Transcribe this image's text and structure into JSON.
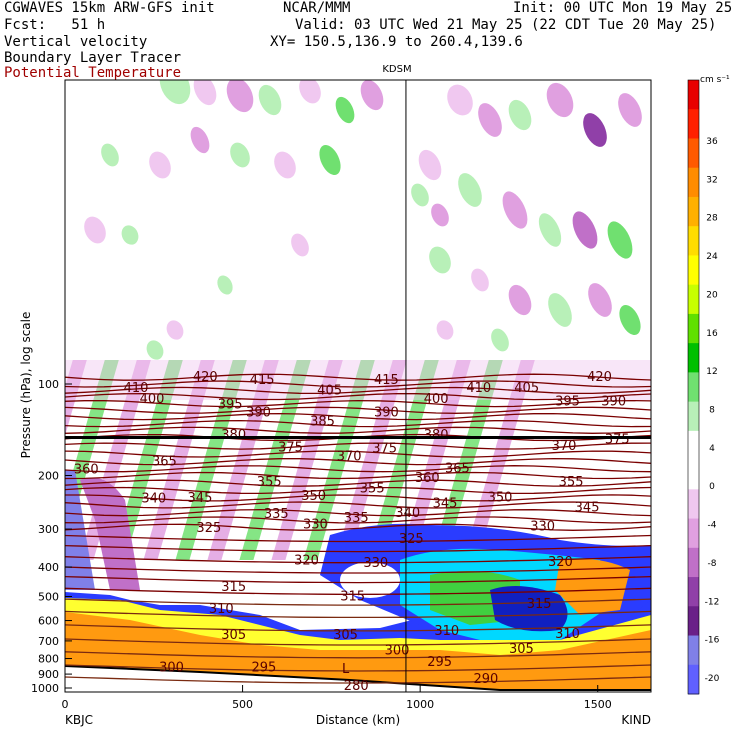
{
  "header": {
    "model": "CGWAVES 15km ARW-GFS init",
    "org": "NCAR/MMM",
    "init": "Init: 00 UTC Mon 19 May 25",
    "fcst": "Fcst:   51 h",
    "valid": "Valid: 03 UTC Wed 21 May 25 (22 CDT Tue 20 May 25)",
    "field1": "Vertical velocity",
    "xy": "XY= 150.5,136.9 to 260.4,139.6",
    "field2": "Boundary Layer Tracer",
    "field3": "Potential Temperature",
    "field3_color": "#a00000"
  },
  "chart_data": {
    "type": "heatmap",
    "title": "KDSM",
    "xlabel": "Distance (km)",
    "ylabel": "Pressure (hPa), log scale",
    "xlim": [
      0,
      1650
    ],
    "x_ticks": [
      0,
      500,
      1000,
      1500
    ],
    "y_ticks": [
      100,
      200,
      300,
      400,
      500,
      600,
      700,
      800,
      900,
      1000
    ],
    "y_scale": "log",
    "left_station": "KBJC",
    "right_station": "KIND",
    "mid_station": "KDSM",
    "mid_station_km": 960,
    "colorbar": {
      "unit": "cm s⁻¹",
      "labels": [
        36,
        32,
        28,
        24,
        20,
        16,
        12,
        8,
        4,
        0,
        -4,
        -8,
        -12,
        -16,
        -20
      ],
      "colors": [
        "#e80000",
        "#ff2000",
        "#ff5a00",
        "#ff8c00",
        "#ffb000",
        "#ffdc00",
        "#ffff00",
        "#c8ff00",
        "#60e000",
        "#00c000",
        "#70e070",
        "#b8f0b8",
        "#ffffff",
        "#ffffff",
        "#f0c8f0",
        "#e0a0e0",
        "#c070c8",
        "#9040a8",
        "#6a2088",
        "#8080e8",
        "#6060ff"
      ]
    },
    "tropopause_hPa": 150,
    "theta_labels": [
      {
        "v": "420",
        "km": 395,
        "p": 95
      },
      {
        "v": "415",
        "km": 555,
        "p": 97
      },
      {
        "v": "415",
        "km": 905,
        "p": 97
      },
      {
        "v": "420",
        "km": 1505,
        "p": 95
      },
      {
        "v": "410",
        "km": 200,
        "p": 103
      },
      {
        "v": "405",
        "km": 745,
        "p": 105
      },
      {
        "v": "410",
        "km": 1165,
        "p": 103
      },
      {
        "v": "405",
        "km": 1300,
        "p": 103
      },
      {
        "v": "400",
        "km": 245,
        "p": 112
      },
      {
        "v": "395",
        "km": 465,
        "p": 117
      },
      {
        "v": "390",
        "km": 545,
        "p": 124
      },
      {
        "v": "390",
        "km": 905,
        "p": 124
      },
      {
        "v": "400",
        "km": 1045,
        "p": 112
      },
      {
        "v": "395",
        "km": 1415,
        "p": 114
      },
      {
        "v": "390",
        "km": 1545,
        "p": 114
      },
      {
        "v": "385",
        "km": 725,
        "p": 133
      },
      {
        "v": "380",
        "km": 475,
        "p": 147
      },
      {
        "v": "375",
        "km": 635,
        "p": 162
      },
      {
        "v": "375",
        "km": 900,
        "p": 163
      },
      {
        "v": "380",
        "km": 1045,
        "p": 147
      },
      {
        "v": "370",
        "km": 1405,
        "p": 160
      },
      {
        "v": "375",
        "km": 1555,
        "p": 152
      },
      {
        "v": "370",
        "km": 800,
        "p": 173
      },
      {
        "v": "365",
        "km": 1105,
        "p": 190
      },
      {
        "v": "360",
        "km": 60,
        "p": 191
      },
      {
        "v": "365",
        "km": 280,
        "p": 180
      },
      {
        "v": "360",
        "km": 1020,
        "p": 204
      },
      {
        "v": "355",
        "km": 575,
        "p": 210
      },
      {
        "v": "355",
        "km": 865,
        "p": 221
      },
      {
        "v": "355",
        "km": 1425,
        "p": 210
      },
      {
        "v": "350",
        "km": 700,
        "p": 234
      },
      {
        "v": "350",
        "km": 1225,
        "p": 236
      },
      {
        "v": "340",
        "km": 250,
        "p": 238
      },
      {
        "v": "345",
        "km": 380,
        "p": 237
      },
      {
        "v": "345",
        "km": 1070,
        "p": 247
      },
      {
        "v": "345",
        "km": 1470,
        "p": 255
      },
      {
        "v": "340",
        "km": 965,
        "p": 266
      },
      {
        "v": "335",
        "km": 595,
        "p": 268
      },
      {
        "v": "335",
        "km": 820,
        "p": 276
      },
      {
        "v": "330",
        "km": 705,
        "p": 290
      },
      {
        "v": "325",
        "km": 405,
        "p": 298
      },
      {
        "v": "330",
        "km": 1345,
        "p": 294
      },
      {
        "v": "325",
        "km": 975,
        "p": 323
      },
      {
        "v": "320",
        "km": 680,
        "p": 380
      },
      {
        "v": "320",
        "km": 1395,
        "p": 385
      },
      {
        "v": "330",
        "km": 875,
        "p": 388
      },
      {
        "v": "315",
        "km": 475,
        "p": 465
      },
      {
        "v": "315",
        "km": 810,
        "p": 500
      },
      {
        "v": "315",
        "km": 1335,
        "p": 530
      },
      {
        "v": "310",
        "km": 440,
        "p": 550
      },
      {
        "v": "310",
        "km": 1075,
        "p": 650
      },
      {
        "v": "310",
        "km": 1415,
        "p": 665
      },
      {
        "v": "305",
        "km": 475,
        "p": 670
      },
      {
        "v": "305",
        "km": 790,
        "p": 670
      },
      {
        "v": "305",
        "km": 1285,
        "p": 745
      },
      {
        "v": "300",
        "km": 935,
        "p": 752
      },
      {
        "v": "300",
        "km": 300,
        "p": 855
      },
      {
        "v": "295",
        "km": 560,
        "p": 855
      },
      {
        "v": "295",
        "km": 1055,
        "p": 822
      },
      {
        "v": "290",
        "km": 1185,
        "p": 935
      },
      {
        "v": "L",
        "km": 790,
        "p": 865
      },
      {
        "v": "280",
        "km": 820,
        "p": 985
      }
    ]
  }
}
